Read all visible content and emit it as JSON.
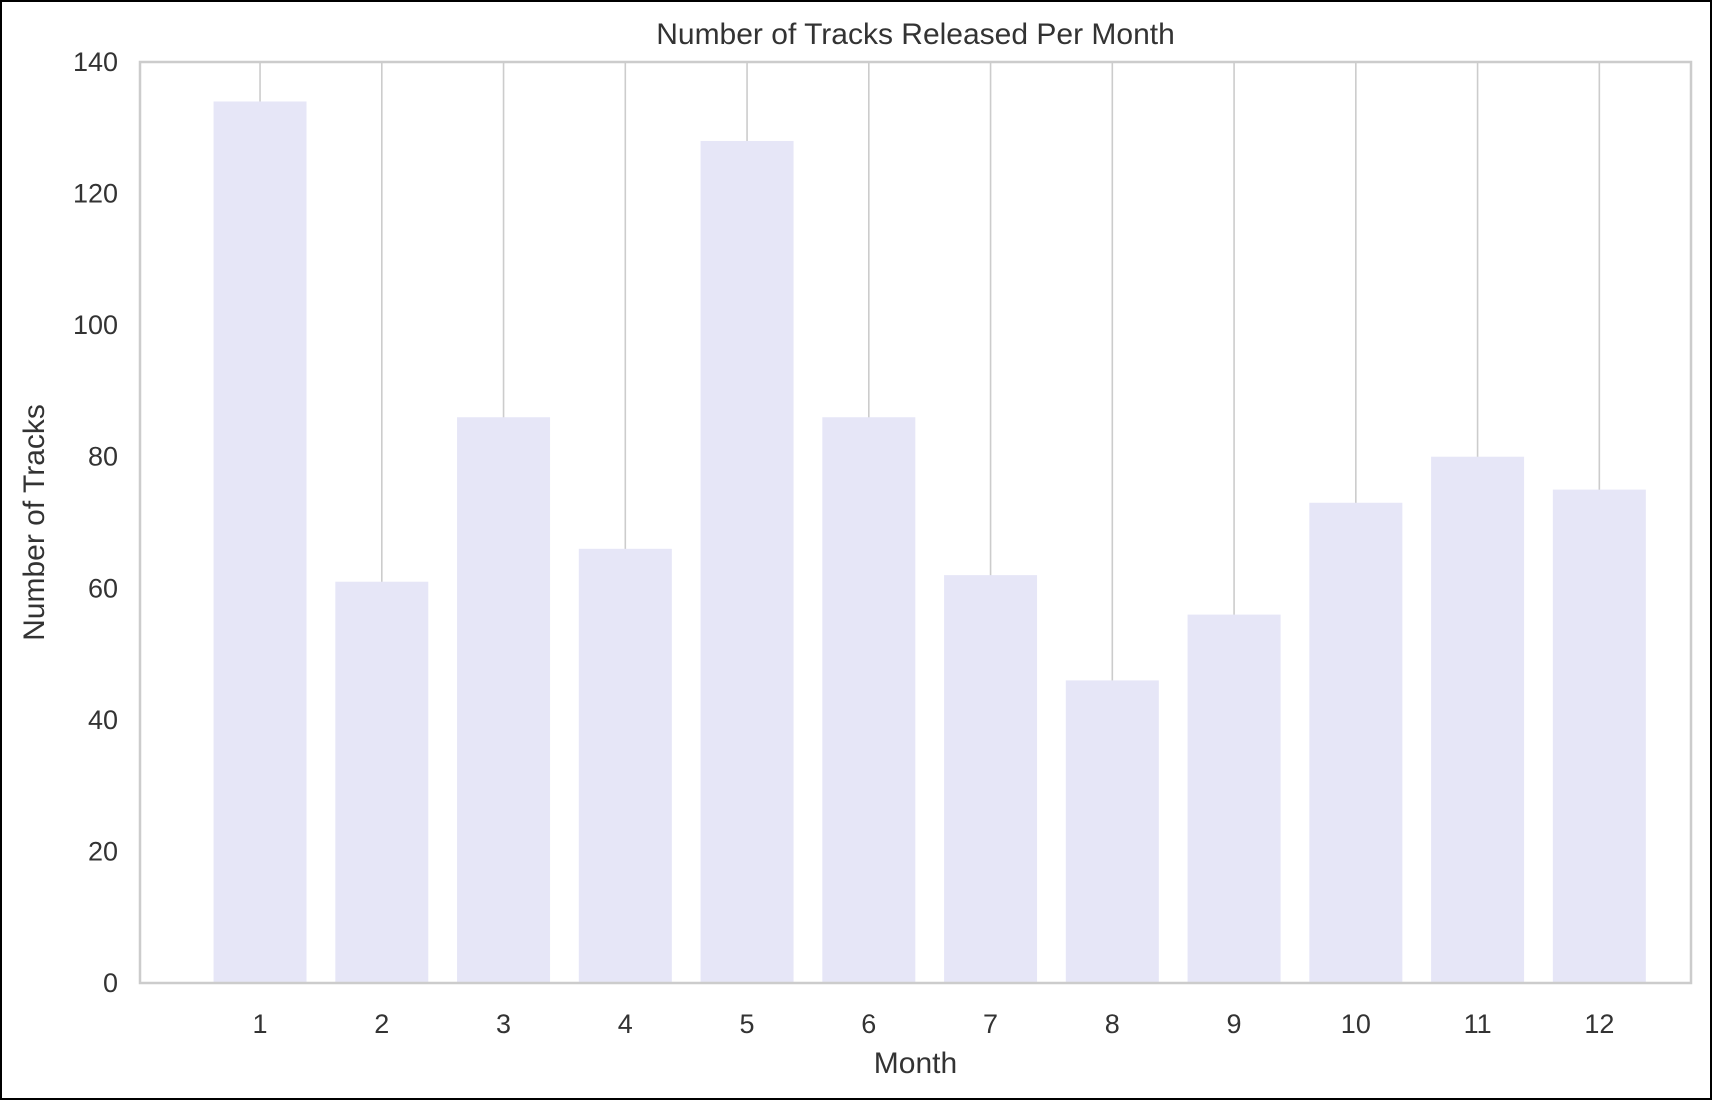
{
  "chart_data": {
    "type": "bar",
    "title": "Number of Tracks Released Per Month",
    "xlabel": "Month",
    "ylabel": "Number of Tracks",
    "categories": [
      "1",
      "2",
      "3",
      "4",
      "5",
      "6",
      "7",
      "8",
      "9",
      "10",
      "11",
      "12"
    ],
    "values": [
      134,
      61,
      86,
      66,
      128,
      86,
      62,
      46,
      56,
      73,
      80,
      75
    ],
    "ylim": [
      0,
      140
    ],
    "yticks": [
      0,
      20,
      40,
      60,
      80,
      100,
      120,
      140
    ],
    "grid": "vertical",
    "bar_color": "#e6e6f7",
    "grid_color": "#cccccc",
    "axis_color": "#cccccc"
  }
}
